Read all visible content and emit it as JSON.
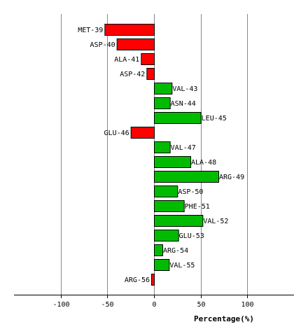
{
  "chart_data": {
    "type": "bar",
    "orientation": "horizontal",
    "categories": [
      "MET-39",
      "ASP-40",
      "ALA-41",
      "ASP-42",
      "VAL-43",
      "ASN-44",
      "LEU-45",
      "GLU-46",
      "VAL-47",
      "ALA-48",
      "ARG-49",
      "ASP-50",
      "PHE-51",
      "VAL-52",
      "GLU-53",
      "ARG-54",
      "VAL-55",
      "ARG-56"
    ],
    "values": [
      -53,
      -40,
      -14,
      -8,
      19,
      17,
      50,
      -25,
      17,
      39,
      69,
      25,
      32,
      52,
      26,
      9,
      16,
      -3
    ],
    "xlabel": "Percentage(%)",
    "xlim": [
      -150,
      150
    ],
    "xticks": [
      -100,
      -50,
      0,
      50,
      100
    ],
    "grid": "vertical",
    "colors": {
      "positive": "#00bb00",
      "negative": "#ff0000",
      "grid": "#888888",
      "axis": "#000000"
    }
  }
}
